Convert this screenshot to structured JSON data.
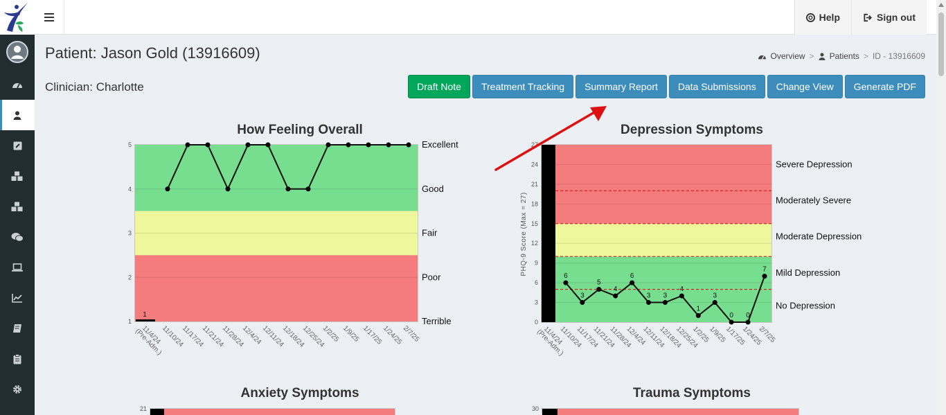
{
  "topbar": {
    "help_label": "Help",
    "signout_label": "Sign out"
  },
  "page": {
    "title": "Patient: Jason Gold (13916609)",
    "clinician": "Clinician: Charlotte"
  },
  "breadcrumb": {
    "overview": "Overview",
    "patients": "Patients",
    "current": "ID - 13916609"
  },
  "buttons": {
    "draft_note": "Draft Note",
    "treatment_tracking": "Treatment Tracking",
    "summary_report": "Summary Report",
    "data_submissions": "Data Submissions",
    "change_view": "Change View",
    "generate_pdf": "Generate PDF"
  },
  "sidebar": {
    "items": [
      {
        "icon": "dashboard-icon"
      },
      {
        "icon": "user-icon",
        "active": true
      },
      {
        "icon": "edit-icon"
      },
      {
        "icon": "cubes-icon"
      },
      {
        "icon": "cubes-icon"
      },
      {
        "icon": "comments-icon"
      },
      {
        "icon": "laptop-icon"
      },
      {
        "icon": "line-chart-icon"
      },
      {
        "icon": "book-icon"
      },
      {
        "icon": "clipboard-icon"
      },
      {
        "icon": "gear-icon"
      }
    ]
  },
  "colors": {
    "good_zone": "#77dd8f",
    "fair_zone": "#eff79c",
    "poor_zone": "#f47c7c",
    "primary_button": "#3c8dbc",
    "success_button": "#00a65a",
    "annotation_arrow": "#dd1111",
    "sidebar": "#222d32"
  },
  "chart_data": [
    {
      "type": "line",
      "title": "How Feeling Overall",
      "categories": [
        "11/4/24 (Pre-Adm.)",
        "11/10/24",
        "11/17/24",
        "11/21/24",
        "11/28/24",
        "12/4/24",
        "12/11/24",
        "12/18/24",
        "12/25/24",
        "1/2/25",
        "1/9/25",
        "1/17/25",
        "1/24/25",
        "2/7/25"
      ],
      "values": [
        1,
        4,
        5,
        5,
        4,
        5,
        5,
        4,
        4,
        5,
        5,
        5,
        5,
        5
      ],
      "data_labels": [
        "1",
        "",
        "",
        "",
        "",
        "",
        "",
        "",
        "",
        "",
        "",
        "",
        "",
        ""
      ],
      "ylim": [
        1,
        5
      ],
      "yticks": [
        "1",
        "2",
        "3",
        "4",
        "5"
      ],
      "right_labels": [
        "Excellent",
        "Good",
        "Fair",
        "Poor",
        "Terrible"
      ],
      "grid": true
    },
    {
      "type": "line",
      "title": "Depression Symptoms",
      "ylabel": "PHQ-9 Score (Max = 27)",
      "categories": [
        "11/4/24 (Pre-Adm.)",
        "11/10/24",
        "11/17/24",
        "11/21/24",
        "11/28/24",
        "12/4/24",
        "12/11/24",
        "12/18/24",
        "12/25/24",
        "1/2/25",
        "1/9/25",
        "1/17/25",
        "1/24/25",
        "2/7/25"
      ],
      "values": [
        null,
        6,
        3,
        5,
        4,
        6,
        3,
        3,
        4,
        1,
        3,
        0,
        0,
        7
      ],
      "data_labels": [
        "",
        "6",
        "3",
        "5",
        "4",
        "6",
        "3",
        "3",
        "4",
        "1",
        "3",
        "0",
        "0",
        "7"
      ],
      "ylim": [
        0,
        27
      ],
      "yticks": [
        "0",
        "3",
        "6",
        "9",
        "12",
        "15",
        "18",
        "21",
        "24",
        "27"
      ],
      "thresholds": [
        5,
        10,
        15,
        20
      ],
      "right_labels": [
        "Severe Depression",
        "Moderately Severe",
        "Moderate Depression",
        "Mild Depression",
        "No Depression"
      ],
      "grid": true
    },
    {
      "type": "line",
      "title": "Anxiety Symptoms",
      "yticks": [
        "21"
      ]
    },
    {
      "type": "line",
      "title": "Trauma Symptoms",
      "yticks": [
        "30"
      ]
    }
  ]
}
